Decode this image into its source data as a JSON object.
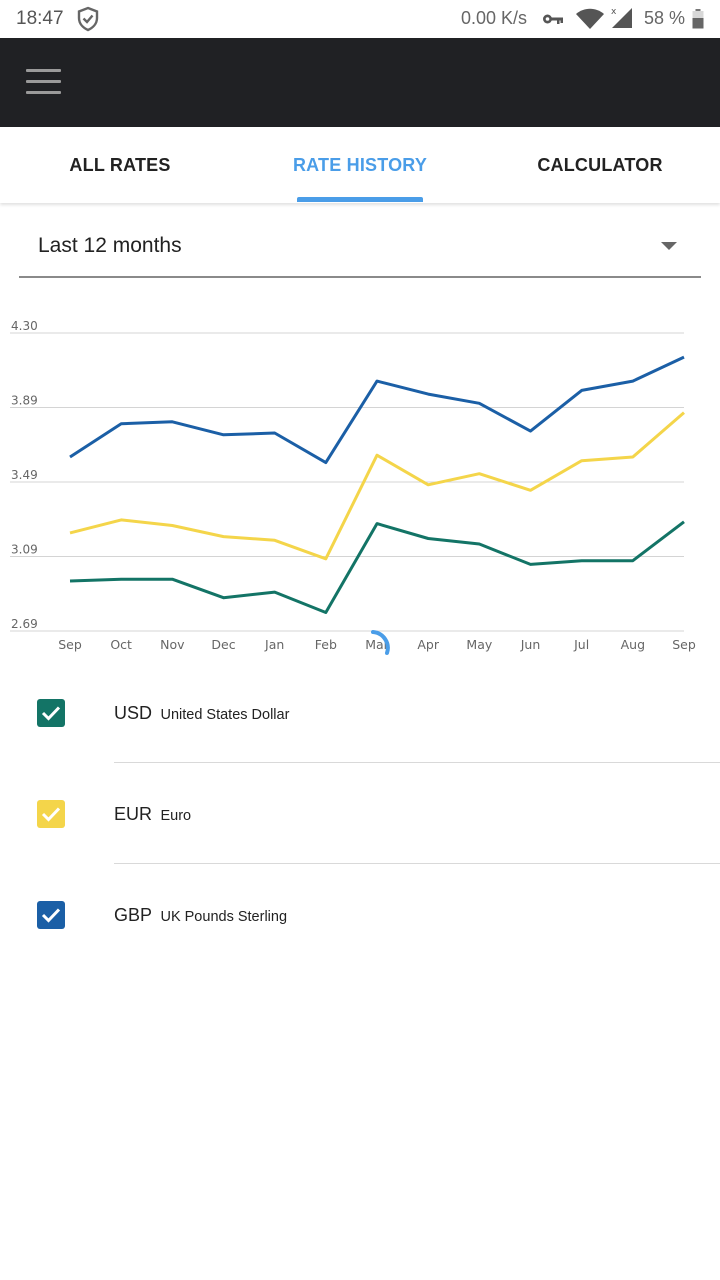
{
  "status_bar": {
    "time": "18:47",
    "speed": "0.00 K/s",
    "battery": "58 %",
    "icons": [
      "shield-icon",
      "key-icon",
      "wifi-icon",
      "signal-icon",
      "battery-icon"
    ]
  },
  "toolbar": {
    "menu_icon": "hamburger-menu-icon"
  },
  "tabs": [
    {
      "label": "ALL RATES",
      "active": false
    },
    {
      "label": "RATE HISTORY",
      "active": true
    },
    {
      "label": "CALCULATOR",
      "active": false
    }
  ],
  "period": {
    "selected": "Last 12 months"
  },
  "chart_data": {
    "type": "line",
    "categories": [
      "Sep",
      "Oct",
      "Nov",
      "Dec",
      "Jan",
      "Feb",
      "Mar",
      "Apr",
      "May",
      "Jun",
      "Jul",
      "Aug",
      "Sep"
    ],
    "y_ticks": [
      "4.30",
      "3.89",
      "3.49",
      "3.09",
      "2.69"
    ],
    "ylim": [
      2.69,
      4.3
    ],
    "grid": true,
    "series": [
      {
        "name": "GBP",
        "color": "#1b5fa6",
        "values": [
          3.63,
          3.81,
          3.82,
          3.75,
          3.76,
          3.6,
          4.04,
          3.97,
          3.92,
          3.77,
          3.99,
          4.04,
          4.17
        ]
      },
      {
        "name": "EUR",
        "color": "#f4d54a",
        "values": [
          3.22,
          3.29,
          3.26,
          3.2,
          3.18,
          3.08,
          3.64,
          3.48,
          3.54,
          3.45,
          3.61,
          3.63,
          3.87
        ]
      },
      {
        "name": "USD",
        "color": "#137466",
        "values": [
          2.96,
          2.97,
          2.97,
          2.87,
          2.9,
          2.79,
          3.27,
          3.19,
          3.16,
          3.05,
          3.07,
          3.07,
          3.28
        ]
      }
    ]
  },
  "currencies": [
    {
      "code": "USD",
      "name": "United States Dollar",
      "checked": true,
      "color": "#137466"
    },
    {
      "code": "EUR",
      "name": "Euro",
      "checked": true,
      "color": "#f4d54a"
    },
    {
      "code": "GBP",
      "name": "UK Pounds Sterling",
      "checked": true,
      "color": "#1b5fa6"
    }
  ],
  "loading_spinner_color": "#4a9de8"
}
